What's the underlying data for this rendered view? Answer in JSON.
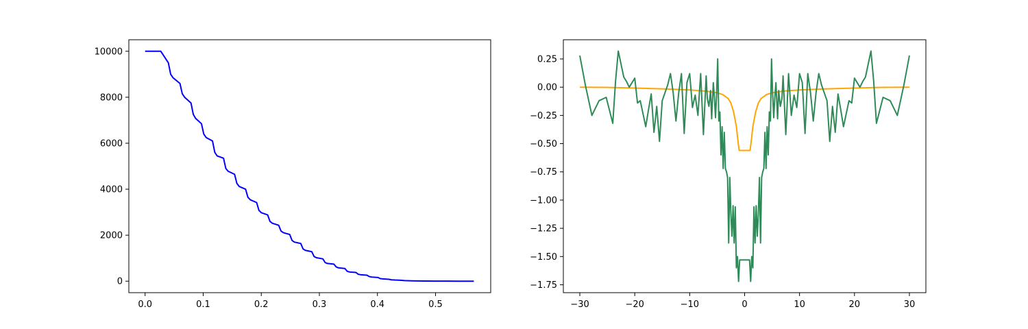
{
  "chart_data": [
    {
      "type": "line",
      "xlim": [
        -0.028,
        0.595
      ],
      "ylim": [
        -500,
        10500
      ],
      "xticks": [
        0.0,
        0.1,
        0.2,
        0.3,
        0.4,
        0.5
      ],
      "xtick_labels": [
        "0.0",
        "0.1",
        "0.2",
        "0.3",
        "0.4",
        "0.5"
      ],
      "yticks": [
        0,
        2000,
        4000,
        6000,
        8000,
        10000
      ],
      "ytick_labels": [
        "0",
        "2000",
        "4000",
        "6000",
        "8000",
        "10000"
      ],
      "grid": false,
      "series": [
        {
          "color": "#0000ff",
          "x": [
            0.0,
            0.027,
            0.04,
            0.044,
            0.048,
            0.06,
            0.064,
            0.068,
            0.079,
            0.083,
            0.087,
            0.097,
            0.101,
            0.105,
            0.116,
            0.12,
            0.124,
            0.135,
            0.139,
            0.143,
            0.154,
            0.158,
            0.162,
            0.173,
            0.177,
            0.181,
            0.192,
            0.196,
            0.2,
            0.211,
            0.215,
            0.219,
            0.23,
            0.234,
            0.238,
            0.249,
            0.253,
            0.257,
            0.268,
            0.272,
            0.276,
            0.287,
            0.291,
            0.295,
            0.306,
            0.31,
            0.314,
            0.325,
            0.329,
            0.333,
            0.344,
            0.348,
            0.352,
            0.363,
            0.367,
            0.371,
            0.382,
            0.386,
            0.39,
            0.401,
            0.405,
            0.409,
            0.42,
            0.424,
            0.43,
            0.44,
            0.447,
            0.46,
            0.48,
            0.5,
            0.52,
            0.54,
            0.566
          ],
          "y": [
            10000,
            10000,
            9500,
            9000,
            8850,
            8600,
            8150,
            8000,
            7750,
            7250,
            7080,
            6850,
            6400,
            6250,
            6100,
            5600,
            5450,
            5350,
            4900,
            4780,
            4650,
            4250,
            4120,
            4000,
            3650,
            3540,
            3420,
            3080,
            2980,
            2880,
            2600,
            2520,
            2430,
            2180,
            2110,
            2030,
            1770,
            1700,
            1640,
            1400,
            1340,
            1280,
            1070,
            1020,
            970,
            810,
            770,
            740,
            620,
            580,
            550,
            430,
            400,
            380,
            300,
            280,
            260,
            200,
            180,
            160,
            110,
            100,
            80,
            60,
            50,
            40,
            25,
            15,
            8,
            4,
            2,
            1,
            0
          ]
        }
      ]
    },
    {
      "type": "line",
      "xlim": [
        -33,
        33
      ],
      "ylim": [
        -1.82,
        0.42
      ],
      "xticks": [
        -30,
        -20,
        -10,
        0,
        10,
        20,
        30
      ],
      "xtick_labels": [
        "−30",
        "−20",
        "−10",
        "0",
        "10",
        "20",
        "30"
      ],
      "yticks": [
        0.25,
        0.0,
        -0.25,
        -0.5,
        -0.75,
        -1.0,
        -1.25,
        -1.5,
        -1.75
      ],
      "ytick_labels": [
        "0.25",
        "0.00",
        "−0.25",
        "−0.50",
        "−0.75",
        "−1.00",
        "−1.25",
        "−1.50",
        "−1.75"
      ],
      "grid": false,
      "series": [
        {
          "color": "#ffa500",
          "x": [
            -30,
            -25,
            -20,
            -15,
            -10,
            -7,
            -5,
            -4,
            -3,
            -2.5,
            -2,
            -1.5,
            -1.2,
            -1,
            0,
            1,
            1.2,
            1.5,
            2,
            2.5,
            3,
            4,
            5,
            7,
            10,
            15,
            20,
            25,
            30
          ],
          "y": [
            0,
            -0.002,
            -0.008,
            -0.015,
            -0.025,
            -0.035,
            -0.05,
            -0.065,
            -0.1,
            -0.14,
            -0.22,
            -0.35,
            -0.48,
            -0.56,
            -0.56,
            -0.56,
            -0.48,
            -0.35,
            -0.22,
            -0.14,
            -0.1,
            -0.065,
            -0.05,
            -0.035,
            -0.025,
            -0.015,
            -0.008,
            -0.002,
            0
          ]
        },
        {
          "color": "#2e8b57",
          "x": [
            -30,
            -29,
            -27.8,
            -26.5,
            -25.2,
            -24,
            -23.5,
            -23,
            -22,
            -21.5,
            -21,
            -20,
            -19.5,
            -19,
            -18,
            -17.5,
            -17,
            -16.5,
            -16,
            -15.5,
            -15,
            -14.5,
            -14,
            -13.5,
            -13,
            -12.5,
            -12,
            -11.5,
            -11,
            -10.5,
            -10,
            -9.5,
            -9,
            -8.5,
            -8,
            -7.5,
            -7,
            -6.8,
            -6.5,
            -6.2,
            -6,
            -5.7,
            -5.5,
            -5.3,
            -5.1,
            -4.9,
            -4.7,
            -4.5,
            -4.3,
            -4.1,
            -3.9,
            -3.7,
            -3.5,
            -3.3,
            -3.1,
            -2.9,
            -2.7,
            -2.5,
            -2.3,
            -2.1,
            -1.9,
            -1.7,
            -1.5,
            -1.3,
            -1.1,
            -0.9,
            -0.7,
            -0.5,
            0,
            0.7,
            0.9,
            1.1,
            1.3,
            1.5,
            1.7,
            1.9,
            2.1,
            2.3,
            2.5,
            2.7,
            2.9,
            3.1,
            3.3,
            3.5,
            3.7,
            3.9,
            4.1,
            4.3,
            4.5,
            4.7,
            4.9,
            5.1,
            5.3,
            5.5,
            5.7,
            6,
            6.2,
            6.5,
            6.8,
            7,
            7.5,
            8,
            8.5,
            9,
            9.5,
            10,
            10.5,
            11,
            11.5,
            12,
            12.5,
            13,
            13.5,
            14,
            14.5,
            15,
            15.5,
            16,
            16.5,
            17,
            17.5,
            18,
            19,
            19.5,
            20,
            21,
            21.5,
            22,
            23,
            23.5,
            24,
            25.2,
            26.5,
            27.8,
            29,
            30
          ],
          "y": [
            0.28,
            0.02,
            -0.25,
            -0.12,
            -0.09,
            -0.32,
            0.05,
            0.32,
            0.09,
            0.05,
            0.0,
            0.08,
            -0.14,
            -0.12,
            -0.35,
            -0.2,
            -0.06,
            -0.4,
            -0.17,
            -0.48,
            -0.12,
            -0.05,
            0.02,
            0.12,
            -0.05,
            -0.3,
            -0.05,
            0.12,
            -0.41,
            0.04,
            0.12,
            -0.18,
            -0.07,
            -0.25,
            0.12,
            -0.42,
            0.1,
            -0.1,
            -0.17,
            -0.03,
            -0.28,
            0.04,
            -0.09,
            -0.27,
            -0.06,
            0.25,
            -0.3,
            -0.22,
            -0.6,
            -0.35,
            -0.72,
            -0.4,
            -0.72,
            -0.75,
            -0.8,
            -1.38,
            -0.8,
            -1.12,
            -1.32,
            -1.05,
            -1.38,
            -1.06,
            -1.6,
            -1.5,
            -1.72,
            -1.53,
            -1.53,
            -1.53,
            -1.53,
            -1.53,
            -1.53,
            -1.72,
            -1.5,
            -1.6,
            -1.06,
            -1.38,
            -1.05,
            -1.32,
            -1.12,
            -0.8,
            -1.38,
            -0.8,
            -0.75,
            -0.72,
            -0.4,
            -0.72,
            -0.35,
            -0.6,
            -0.22,
            -0.3,
            0.25,
            -0.06,
            -0.27,
            -0.09,
            0.04,
            -0.28,
            -0.03,
            -0.17,
            -0.1,
            0.1,
            -0.42,
            0.12,
            -0.25,
            -0.07,
            -0.18,
            0.12,
            0.04,
            -0.41,
            0.12,
            -0.05,
            -0.3,
            -0.05,
            0.12,
            0.02,
            -0.05,
            -0.12,
            -0.48,
            -0.17,
            -0.4,
            -0.06,
            -0.2,
            -0.35,
            -0.12,
            -0.14,
            0.08,
            0.0,
            0.05,
            0.09,
            0.32,
            0.05,
            -0.32,
            -0.09,
            -0.12,
            -0.25,
            0.02,
            0.28
          ]
        }
      ]
    }
  ]
}
